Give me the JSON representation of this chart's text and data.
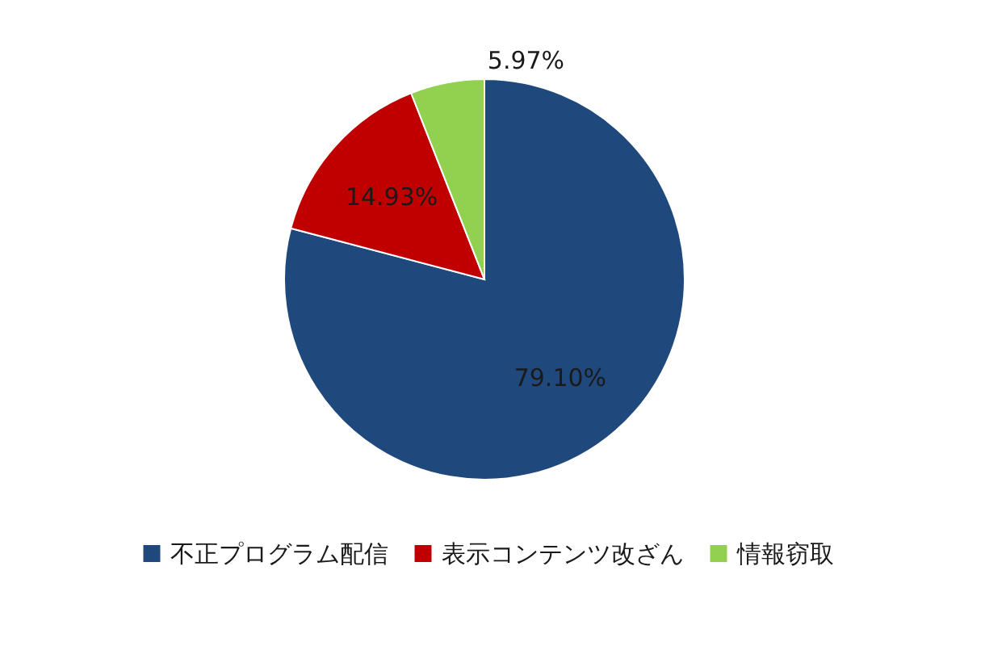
{
  "chart_data": {
    "type": "pie",
    "categories": [
      "不正プログラム配信",
      "表示コンテンツ改ざん",
      "情報窃取"
    ],
    "values": [
      79.1,
      14.93,
      5.97
    ],
    "colors": [
      "#1f497d",
      "#c00000",
      "#92d050"
    ],
    "value_labels": [
      "79.10%",
      "14.93%",
      "5.97%"
    ],
    "legend": "bottom"
  }
}
